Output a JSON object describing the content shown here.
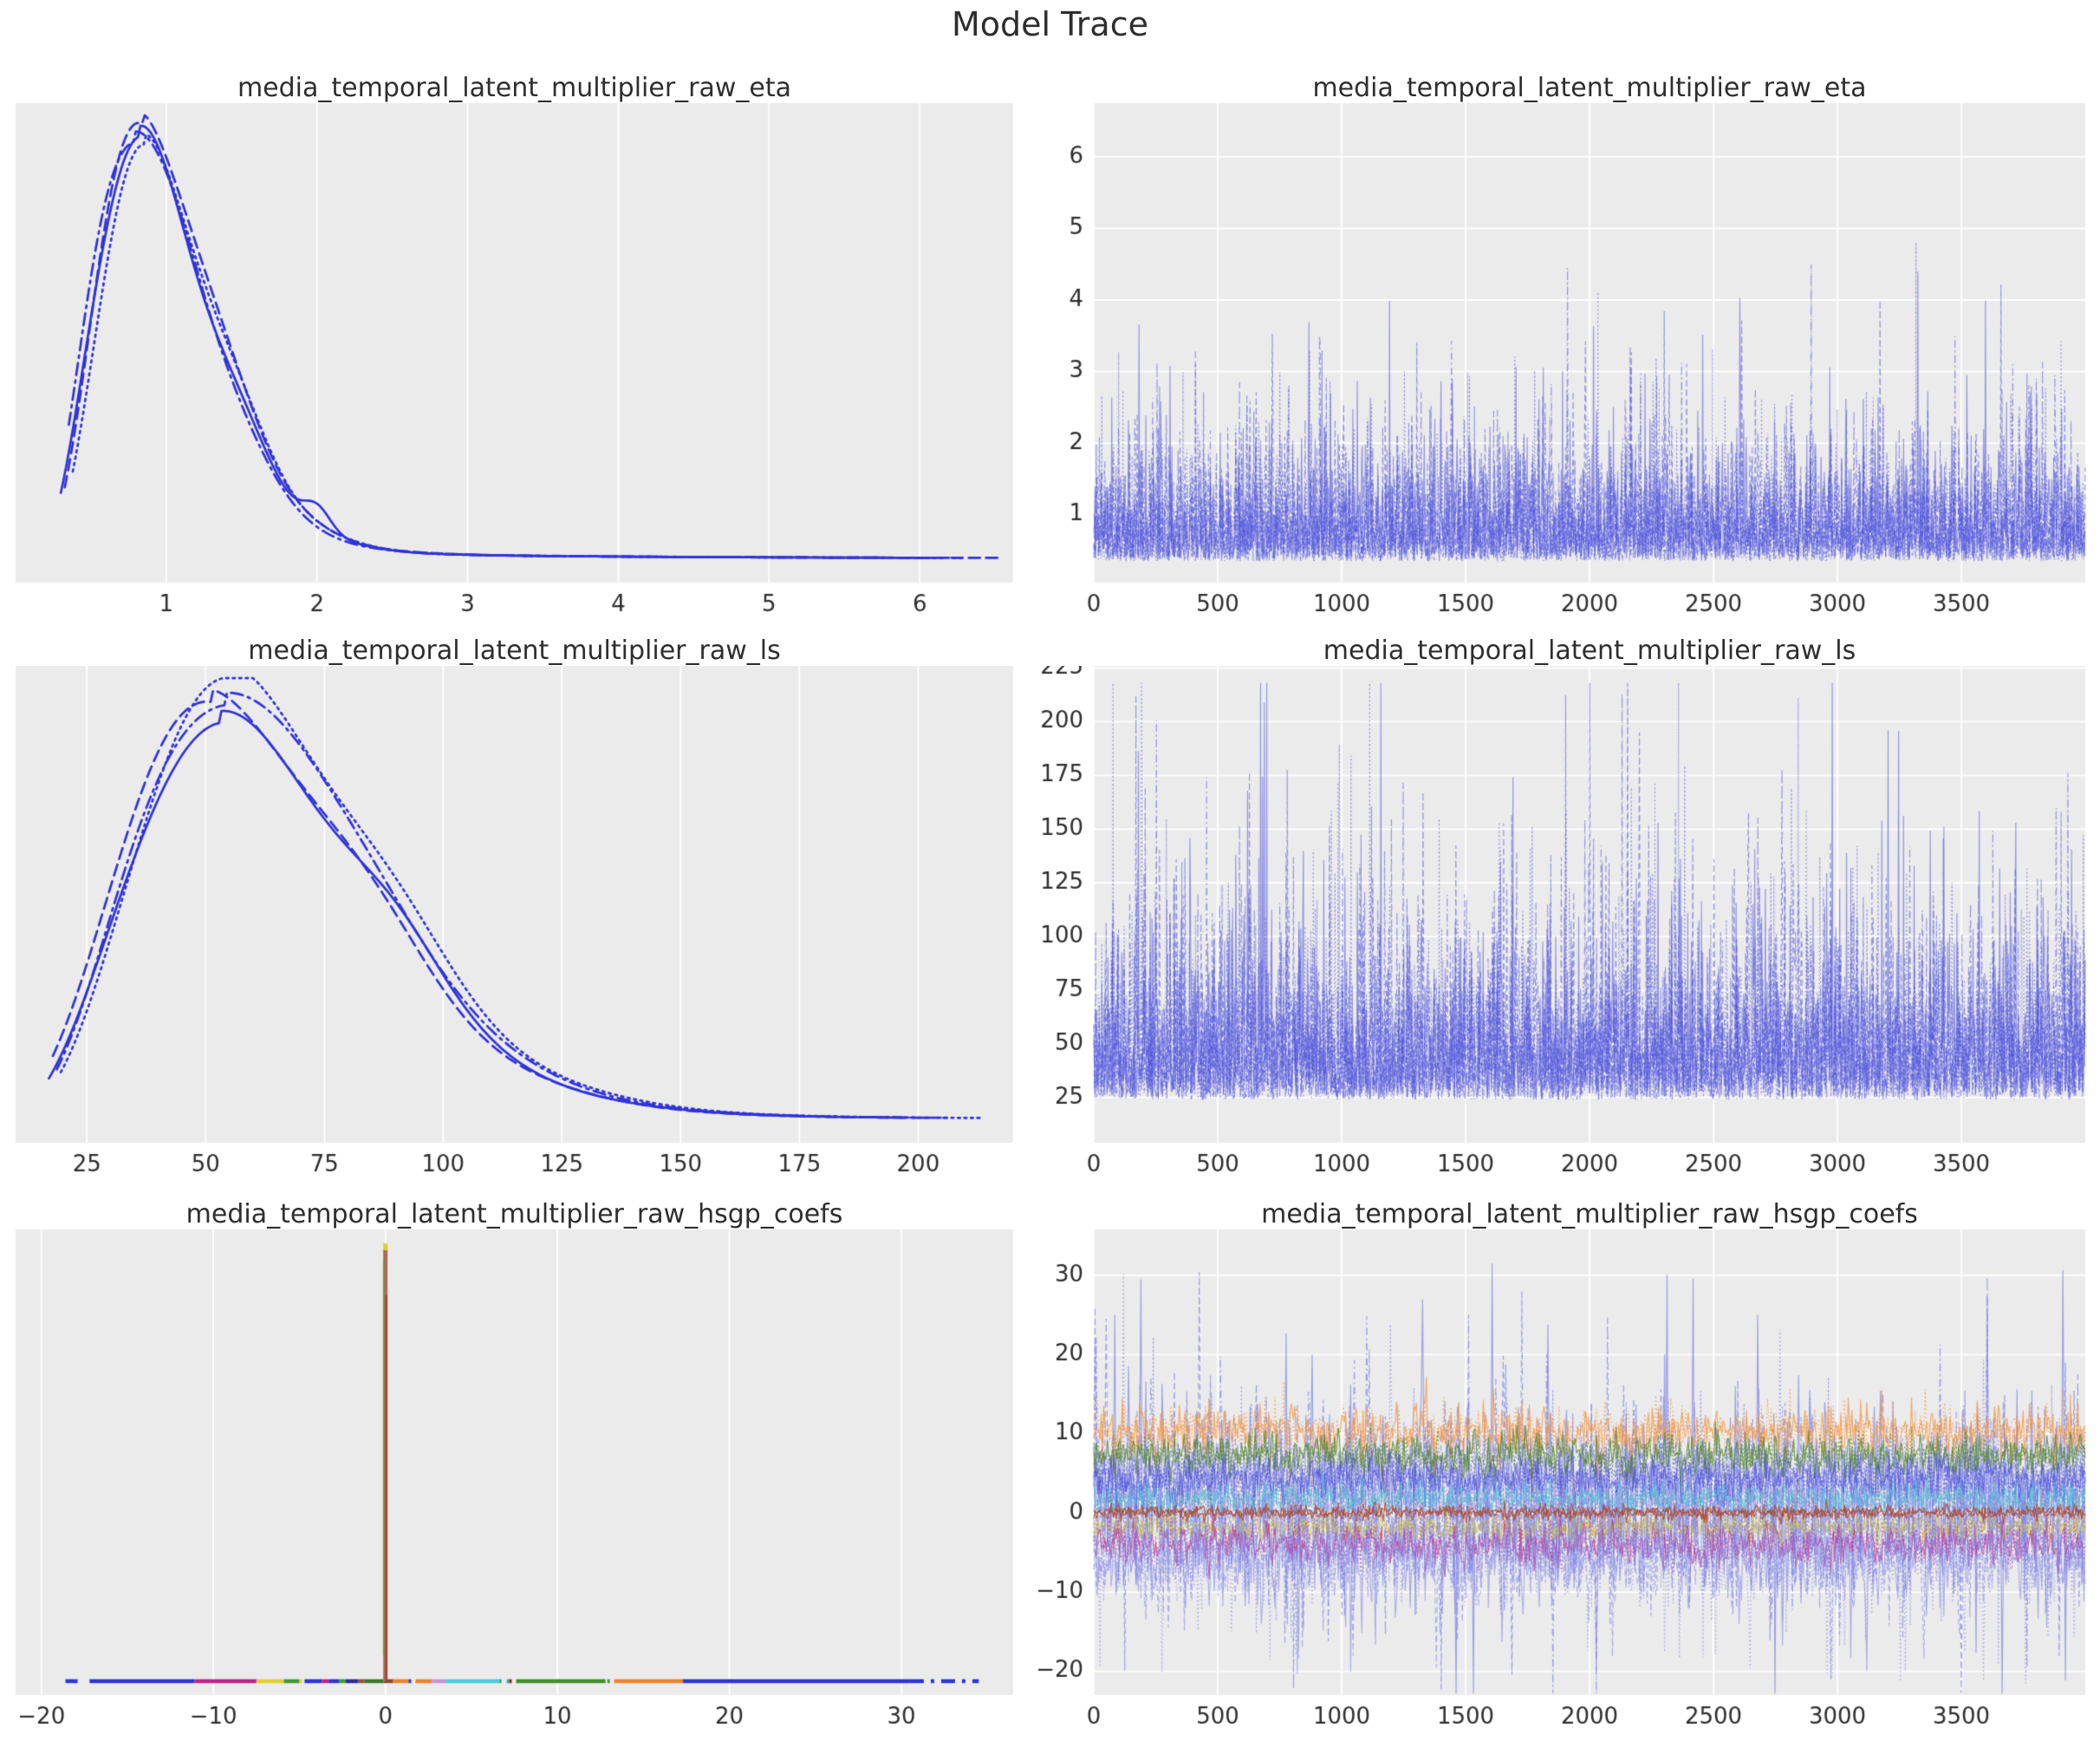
{
  "page_title": "Model Trace",
  "colors": {
    "figure_bg": "#ffffff",
    "plot_bg": "#ebebeb",
    "grid": "#ffffff",
    "text": "#2e2e2e",
    "chain_blue": "#2f33d8",
    "trace_blue": "#4b51dc"
  },
  "chain_info": {
    "n_chains": 4,
    "chain_linestyles": [
      "solid",
      "dashed",
      "dashdot",
      "dotted"
    ]
  },
  "chart_data": [
    {
      "type": "line",
      "subtype": "kde-density",
      "position": "row1-left",
      "title": "media_temporal_latent_multiplier_raw_eta",
      "xlim": [
        0,
        6.62
      ],
      "xticks": [
        1,
        2,
        3,
        4,
        5,
        6
      ],
      "xtick_labels": [
        "1",
        "2",
        "3",
        "4",
        "5",
        "6"
      ],
      "yticks": [],
      "grid": "x-only",
      "seed": 7,
      "kde": {
        "support": [
          0.3,
          6.45
        ],
        "mode": 0.82,
        "gamma_k": 6,
        "gamma_theta": 0.164,
        "bumps": [
          {
            "mu": 1.5,
            "s": 0.2,
            "w": 0.05
          }
        ],
        "tail_level": 0.025,
        "tail_decay": 1.8,
        "chain_amps": [
          0.955,
          1.0,
          0.98,
          0.935
        ],
        "chain_shifts": [
          0,
          0.02,
          -0.025,
          0.045
        ],
        "chain_ends": [
          6.1,
          6.55,
          5.95,
          6.3
        ],
        "chain_bumps": [
          {
            "chain": 0,
            "mu": 2.0,
            "s": 0.09,
            "w": 0.055
          }
        ]
      }
    },
    {
      "type": "line",
      "subtype": "trace",
      "position": "row1-right",
      "title": "media_temporal_latent_multiplier_raw_eta",
      "xlim": [
        0,
        4000
      ],
      "xticks": [
        0,
        500,
        1000,
        1500,
        2000,
        2500,
        3000,
        3500
      ],
      "xtick_labels": [
        "0",
        "500",
        "1000",
        "1500",
        "2000",
        "2500",
        "3000",
        "3500"
      ],
      "ylim": [
        0.05,
        6.75
      ],
      "yticks": [
        1,
        2,
        3,
        4,
        5,
        6
      ],
      "ytick_labels": [
        "1",
        "2",
        "3",
        "4",
        "5",
        "6"
      ],
      "grid": "both",
      "n_draws": 4000,
      "seed": 11,
      "gen": {
        "base": 0.35,
        "exp_scale": 0.55,
        "clamp": 6.45,
        "typical_range": [
          0.4,
          2.5
        ],
        "spike_max": 6.45
      }
    },
    {
      "type": "line",
      "subtype": "kde-density",
      "position": "row2-left",
      "title": "media_temporal_latent_multiplier_raw_ls",
      "xlim": [
        10,
        220
      ],
      "xticks": [
        25,
        50,
        75,
        100,
        125,
        150,
        175,
        200
      ],
      "xtick_labels": [
        "25",
        "50",
        "75",
        "100",
        "125",
        "150",
        "175",
        "200"
      ],
      "yticks": [],
      "grid": "x-only",
      "seed": 13,
      "kde": {
        "support": [
          17,
          213
        ],
        "mode": 53,
        "gamma_k": 6,
        "gamma_theta": 10.6,
        "bumps": [
          {
            "mu": 88,
            "s": 12,
            "w": 0.07
          }
        ],
        "tail_level": 0.03,
        "tail_decay": 45,
        "chain_amps": [
          0.9,
          0.955,
          0.975,
          1.0
        ],
        "chain_shifts": [
          0,
          -1.5,
          1.0,
          2.2
        ],
        "chain_ends": [
          196,
          200,
          206,
          213
        ],
        "chain_bumps": [
          {
            "chain": 0,
            "mu": 90,
            "s": 9,
            "w": 0.05
          }
        ]
      }
    },
    {
      "type": "line",
      "subtype": "trace",
      "position": "row2-right",
      "title": "media_temporal_latent_multiplier_raw_ls",
      "xlim": [
        0,
        4000
      ],
      "xticks": [
        0,
        500,
        1000,
        1500,
        2000,
        2500,
        3000,
        3500
      ],
      "xtick_labels": [
        "0",
        "500",
        "1000",
        "1500",
        "2000",
        "2500",
        "3000",
        "3500"
      ],
      "ylim": [
        4,
        226
      ],
      "yticks": [
        25,
        50,
        75,
        100,
        125,
        150,
        175,
        200,
        225
      ],
      "ytick_labels": [
        "25",
        "50",
        "75",
        "100",
        "125",
        "150",
        "175",
        "200",
        "225"
      ],
      "grid": "both",
      "n_draws": 4000,
      "seed": 17,
      "gen": {
        "base": 24,
        "exp_scale": 26,
        "clamp": 218,
        "typical_range": [
          25,
          130
        ],
        "spike_max": 216
      }
    },
    {
      "type": "line",
      "subtype": "kde-spike",
      "position": "row3-left",
      "title": "media_temporal_latent_multiplier_raw_hsgp_coefs",
      "xlim": [
        -21.5,
        36.5
      ],
      "xticks": [
        -20,
        -10,
        0,
        10,
        20,
        30
      ],
      "xtick_labels": [
        "−20",
        "−10",
        "0",
        "10",
        "20",
        "30"
      ],
      "yticks": [],
      "grid": "x-only",
      "seed": 19,
      "spike": {
        "x": 0,
        "main_color": "#b06a52",
        "overlay_color": "#a33b28",
        "side_color": "#6f9a4a",
        "tip_color": "#ddd22a"
      },
      "baseline_segments": [
        {
          "x0": -18.6,
          "x1": -17.5,
          "color": "#2f33d8",
          "style": "dashed"
        },
        {
          "x0": -17.2,
          "x1": -11.1,
          "color": "#2f33d8",
          "style": "solid"
        },
        {
          "x0": -11.1,
          "x1": -7.5,
          "color": "#c1208b",
          "style": "solid"
        },
        {
          "x0": -7.5,
          "x1": -6.7,
          "color": "#ddd22a",
          "style": "solid"
        },
        {
          "x0": -6.7,
          "x1": -5.9,
          "color": "#ddd22a",
          "style": "solid"
        },
        {
          "x0": -5.9,
          "x1": -5.0,
          "color": "#3f9a30",
          "style": "solid"
        },
        {
          "x0": -5.0,
          "x1": -4.7,
          "color": "#ddd22a",
          "style": "dotted"
        },
        {
          "x0": -4.7,
          "x1": -3.7,
          "color": "#2f33d8",
          "style": "solid"
        },
        {
          "x0": -3.7,
          "x1": -3.3,
          "color": "#c1208b",
          "style": "solid"
        },
        {
          "x0": -3.3,
          "x1": -2.7,
          "color": "#2f33d8",
          "style": "solid"
        },
        {
          "x0": -2.7,
          "x1": -2.3,
          "color": "#3f9a30",
          "style": "solid"
        },
        {
          "x0": -2.3,
          "x1": -1.6,
          "color": "#2a2a9a",
          "style": "solid"
        },
        {
          "x0": -1.6,
          "x1": -1.2,
          "color": "#8a5a35",
          "style": "solid"
        },
        {
          "x0": -1.2,
          "x1": -0.1,
          "color": "#3a7a2a",
          "style": "solid"
        },
        {
          "x0": -0.1,
          "x1": 0.45,
          "color": "#8a4a30",
          "style": "solid"
        },
        {
          "x0": 0.45,
          "x1": 1.35,
          "color": "#f08228",
          "style": "solid"
        },
        {
          "x0": 1.35,
          "x1": 1.75,
          "color": "#2f33d8",
          "style": "dotted"
        },
        {
          "x0": 1.75,
          "x1": 2.7,
          "color": "#f08228",
          "style": "solid"
        },
        {
          "x0": 2.7,
          "x1": 3.5,
          "color": "#c695d6",
          "style": "solid"
        },
        {
          "x0": 3.5,
          "x1": 6.6,
          "color": "#45cfe0",
          "style": "solid"
        },
        {
          "x0": 6.6,
          "x1": 7.2,
          "color": "#2fae8f",
          "style": "dotted"
        },
        {
          "x0": 7.2,
          "x1": 7.6,
          "color": "#9a2525",
          "style": "dotted"
        },
        {
          "x0": 7.6,
          "x1": 12.8,
          "color": "#3f8f28",
          "style": "solid"
        },
        {
          "x0": 12.9,
          "x1": 13.3,
          "color": "#3f9a30",
          "style": "dotted"
        },
        {
          "x0": 13.3,
          "x1": 17.3,
          "color": "#f08228",
          "style": "solid"
        },
        {
          "x0": 17.3,
          "x1": 30.5,
          "color": "#2f33d8",
          "style": "solid"
        },
        {
          "x0": 30.5,
          "x1": 34.5,
          "color": "#2f33d8",
          "style": "dashdot"
        }
      ]
    },
    {
      "type": "line",
      "subtype": "trace-multi",
      "position": "row3-right",
      "title": "media_temporal_latent_multiplier_raw_hsgp_coefs",
      "xlim": [
        0,
        4000
      ],
      "xticks": [
        0,
        500,
        1000,
        1500,
        2000,
        2500,
        3000,
        3500
      ],
      "xtick_labels": [
        "0",
        "500",
        "1000",
        "1500",
        "2000",
        "2500",
        "3000",
        "3500"
      ],
      "ylim": [
        -23,
        35.8
      ],
      "yticks": [
        -20,
        -10,
        0,
        10,
        20,
        30
      ],
      "ytick_labels": [
        "−20",
        "−10",
        "0",
        "10",
        "20",
        "30"
      ],
      "grid": "both",
      "n_draws": 4000,
      "seed": 23,
      "series": [
        {
          "name": "coef-band-periwinkle-wide",
          "color": "#7b81e6",
          "alpha": 0.7,
          "center": 2.5,
          "sd": 5.0,
          "tail_p": 0.02,
          "tail_lo": 12,
          "tail_hi": 30,
          "neg_bias": 0.45,
          "dashes": [
            "solid",
            "dashed",
            "dotted",
            "dashdot"
          ],
          "n": 800
        },
        {
          "name": "coef-band-orange",
          "color": "#f5943c",
          "alpha": 0.75,
          "center": 10.3,
          "sd": 1.6,
          "tail_p": 0.004,
          "tail_lo": 4,
          "tail_hi": 7,
          "neg_bias": 0.3,
          "dashes": [
            "solid",
            "dotted"
          ],
          "n": 800
        },
        {
          "name": "coef-band-green",
          "color": "#55882b",
          "alpha": 0.8,
          "center": 7.3,
          "sd": 1.4,
          "tail_p": 0.002,
          "tail_lo": 2,
          "tail_hi": 4,
          "neg_bias": 0.5,
          "dashes": [
            "solid",
            "dotted"
          ],
          "n": 800
        },
        {
          "name": "coef-band-indigo",
          "color": "#4549d8",
          "alpha": 0.65,
          "center": 4.3,
          "sd": 1.5,
          "tail_p": 0.003,
          "tail_lo": 2,
          "tail_hi": 5,
          "neg_bias": 0.5,
          "dashes": [
            "solid",
            "dotted"
          ],
          "n": 800
        },
        {
          "name": "coef-band-cyan",
          "color": "#4cc8d6",
          "alpha": 0.7,
          "center": 1.9,
          "sd": 1.0,
          "tail_p": 0.002,
          "tail_lo": 1,
          "tail_hi": 3,
          "neg_bias": 0.5,
          "dashes": [
            "solid",
            "dotted"
          ],
          "n": 800
        },
        {
          "name": "coef-band-yellow",
          "color": "#d2c243",
          "alpha": 0.75,
          "center": -1.9,
          "sd": 0.9,
          "tail_p": 0.002,
          "tail_lo": 1,
          "tail_hi": 2,
          "neg_bias": 0.6,
          "dashes": [
            "solid",
            "dotted"
          ],
          "n": 800
        },
        {
          "name": "coef-band-magenta",
          "color": "#bf2f8e",
          "alpha": 0.75,
          "center": -4.0,
          "sd": 1.4,
          "tail_p": 0.003,
          "tail_lo": 3,
          "tail_hi": 5,
          "neg_bias": 0.8,
          "dashes": [
            "solid",
            "dotted"
          ],
          "n": 800
        },
        {
          "name": "coef-band-periwinkle-low",
          "color": "#8289e8",
          "alpha": 0.6,
          "center": -5.5,
          "sd": 3.2,
          "tail_p": 0.025,
          "tail_lo": 6,
          "tail_hi": 16,
          "neg_bias": 0.8,
          "dashes": [
            "dotted",
            "dashed",
            "solid"
          ],
          "n": 800
        },
        {
          "name": "coef-band-red-sparse",
          "color": "#c44a3a",
          "alpha": 0.45,
          "center": -0.8,
          "sd": 2.2,
          "tail_p": 0.0,
          "tail_lo": 0,
          "tail_hi": 0,
          "neg_bias": 0.5,
          "dashes": [
            "dotted"
          ],
          "n": 500
        },
        {
          "name": "coef-band-zero-line",
          "color": "#a84a30",
          "alpha": 0.85,
          "center": 0.05,
          "sd": 0.45,
          "tail_p": 0.0,
          "tail_lo": 0,
          "tail_hi": 0,
          "neg_bias": 0.5,
          "dashes": [
            "solid",
            "solid"
          ],
          "n": 800
        }
      ]
    }
  ]
}
